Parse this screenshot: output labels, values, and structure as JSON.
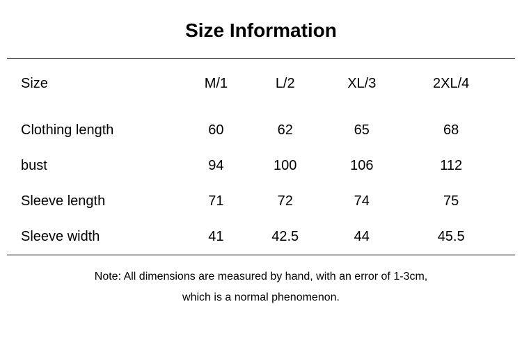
{
  "title": "Size Information",
  "table": {
    "columns": [
      "M/1",
      "L/2",
      "XL/3",
      "2XL/4"
    ],
    "rows": [
      {
        "label": "Size",
        "values": [
          "M/1",
          "L/2",
          "XL/3",
          "2XL/4"
        ]
      },
      {
        "label": "Clothing length",
        "values": [
          "60",
          "62",
          "65",
          "68"
        ]
      },
      {
        "label": "bust",
        "values": [
          "94",
          "100",
          "106",
          "112"
        ]
      },
      {
        "label": "Sleeve length",
        "values": [
          "71",
          "72",
          "74",
          "75"
        ]
      },
      {
        "label": "Sleeve width",
        "values": [
          "41",
          "42.5",
          "44",
          "45.5"
        ]
      }
    ],
    "label_fontsize": 20,
    "cell_fontsize": 20,
    "text_color": "#000000",
    "background_color": "#ffffff",
    "border_color": "#000000"
  },
  "note_line1": "Note: All dimensions are measured by hand, with an error of 1-3cm,",
  "note_line2": "which is a normal phenomenon."
}
